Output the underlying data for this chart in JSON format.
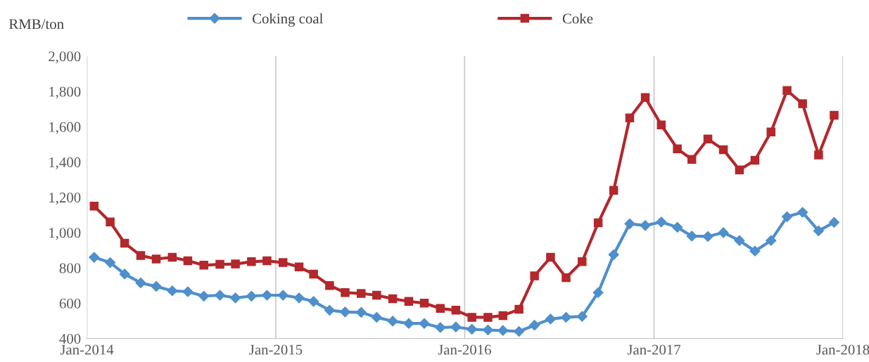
{
  "chart_data": {
    "type": "line",
    "ylabel": "RMB/ton",
    "x": [
      "2014-01-15",
      "2014-02-15",
      "2014-03-15",
      "2014-04-15",
      "2014-05-15",
      "2014-06-15",
      "2014-07-15",
      "2014-08-15",
      "2014-09-15",
      "2014-10-15",
      "2014-11-15",
      "2014-12-15",
      "2015-01-15",
      "2015-02-15",
      "2015-03-15",
      "2015-04-15",
      "2015-05-15",
      "2015-06-15",
      "2015-07-15",
      "2015-08-15",
      "2015-09-15",
      "2015-10-15",
      "2015-11-15",
      "2015-12-15",
      "2016-01-15",
      "2016-02-15",
      "2016-03-15",
      "2016-04-15",
      "2016-05-15",
      "2016-06-15",
      "2016-07-15",
      "2016-08-15",
      "2016-09-15",
      "2016-10-15",
      "2016-11-15",
      "2016-12-15",
      "2017-01-15",
      "2017-02-15",
      "2017-03-15",
      "2017-04-15",
      "2017-05-15",
      "2017-06-15",
      "2017-07-15",
      "2017-08-15",
      "2017-09-15",
      "2017-10-15",
      "2017-11-15",
      "2017-12-15"
    ],
    "series": [
      {
        "name": "Coking coal",
        "color": "#4f8fcc",
        "marker": "diamond",
        "values": [
          860,
          830,
          765,
          715,
          695,
          670,
          665,
          640,
          645,
          630,
          640,
          645,
          645,
          630,
          610,
          560,
          550,
          548,
          520,
          498,
          485,
          485,
          462,
          465,
          452,
          448,
          445,
          440,
          475,
          510,
          520,
          525,
          660,
          875,
          1050,
          1040,
          1060,
          1030,
          980,
          978,
          1000,
          955,
          895,
          955,
          1090,
          1115,
          1010,
          1058
        ]
      },
      {
        "name": "Coke",
        "color": "#b2282c",
        "marker": "square",
        "values": [
          1150,
          1060,
          940,
          870,
          850,
          860,
          840,
          815,
          820,
          822,
          835,
          840,
          830,
          805,
          765,
          700,
          660,
          655,
          645,
          625,
          610,
          600,
          570,
          560,
          520,
          520,
          530,
          565,
          755,
          860,
          745,
          835,
          1055,
          1240,
          1650,
          1765,
          1610,
          1475,
          1415,
          1530,
          1470,
          1355,
          1410,
          1570,
          1805,
          1730,
          1440,
          1665
        ]
      }
    ],
    "xlim": [
      "2014-01-01",
      "2018-01-01"
    ],
    "xticks": [
      {
        "value": "2014-01-01",
        "label": "Jan-2014"
      },
      {
        "value": "2015-01-01",
        "label": "Jan-2015"
      },
      {
        "value": "2016-01-01",
        "label": "Jan-2016"
      },
      {
        "value": "2017-01-01",
        "label": "Jan-2017"
      },
      {
        "value": "2018-01-01",
        "label": "Jan-2018"
      }
    ],
    "ylim": [
      400,
      2000
    ],
    "yticks": [
      {
        "value": 400,
        "label": "400"
      },
      {
        "value": 600,
        "label": "600"
      },
      {
        "value": 800,
        "label": "800"
      },
      {
        "value": 1000,
        "label": "1,000"
      },
      {
        "value": 1200,
        "label": "1,200"
      },
      {
        "value": 1400,
        "label": "1,400"
      },
      {
        "value": 1600,
        "label": "1,600"
      },
      {
        "value": 1800,
        "label": "1,800"
      },
      {
        "value": 2000,
        "label": "2,000"
      }
    ],
    "grid": "x",
    "legend": "top",
    "line_style": "solid"
  }
}
